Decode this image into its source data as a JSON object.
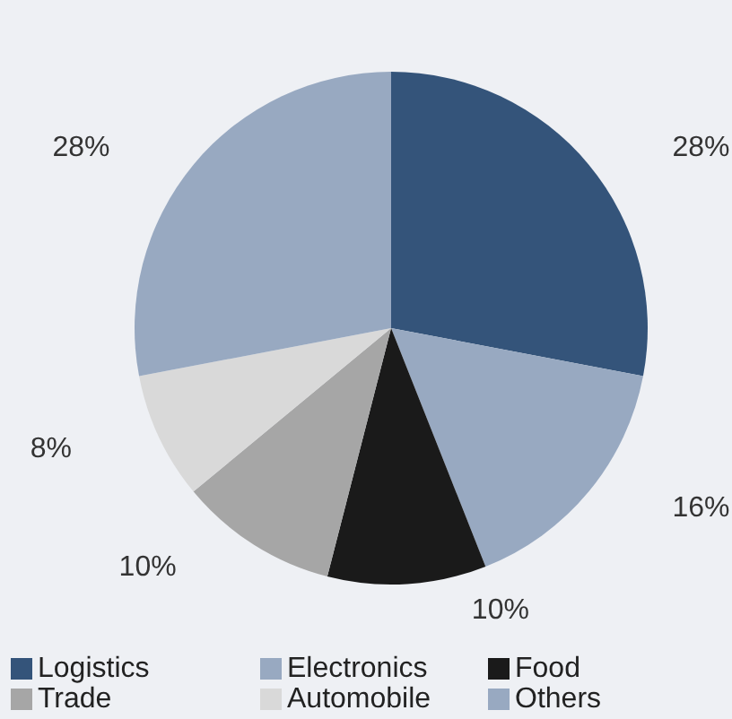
{
  "chart_data": {
    "type": "pie",
    "categories": [
      "Logistics",
      "Electronics",
      "Food",
      "Trade",
      "Automobile",
      "Others"
    ],
    "values": [
      28,
      16,
      10,
      10,
      8,
      28
    ],
    "value_labels": [
      "28%",
      "16%",
      "10%",
      "10%",
      "8%",
      "28%"
    ],
    "colors": [
      "#34547a",
      "#98a9c1",
      "#1a1a1a",
      "#a6a6a6",
      "#d9d9d9",
      "#98a9c1"
    ],
    "legend": "bottom"
  }
}
